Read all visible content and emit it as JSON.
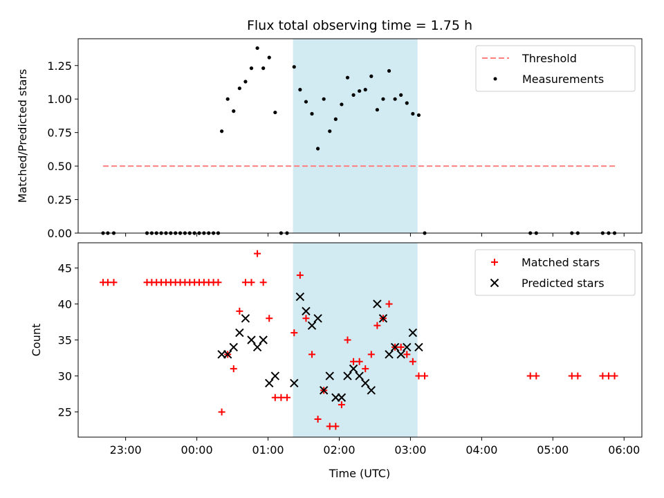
{
  "figure": {
    "title": "Flux total observing time = 1.75 h",
    "xlabel": "Time (UTC)"
  },
  "colors": {
    "shade": "#add8e6",
    "threshold": "#ff7f7f",
    "measurement": "#000000",
    "matched": "#ff0000",
    "predicted": "#000000"
  },
  "chart_data": [
    {
      "type": "scatter",
      "ylabel": "Matched/Predicted stars",
      "xlim": [
        -100,
        375
      ],
      "ylim": [
        0,
        1.45
      ],
      "x_unit": "minutes relative to 00:00 UTC",
      "xticks": [
        {
          "value": -60,
          "label": "23:00"
        },
        {
          "value": 0,
          "label": "00:00"
        },
        {
          "value": 60,
          "label": "01:00"
        },
        {
          "value": 120,
          "label": "02:00"
        },
        {
          "value": 180,
          "label": "03:00"
        },
        {
          "value": 240,
          "label": "04:00"
        },
        {
          "value": 300,
          "label": "05:00"
        },
        {
          "value": 360,
          "label": "06:00"
        }
      ],
      "yticks": [
        {
          "value": 0,
          "label": "0.00"
        },
        {
          "value": 0.25,
          "label": "0.25"
        },
        {
          "value": 0.5,
          "label": "0.50"
        },
        {
          "value": 0.75,
          "label": "0.75"
        },
        {
          "value": 1.0,
          "label": "1.00"
        },
        {
          "value": 1.25,
          "label": "1.25"
        }
      ],
      "shaded_region": [
        81,
        186
      ],
      "legend": {
        "position": "upper right",
        "entries": [
          {
            "label": "Threshold",
            "marker": "dashed-line"
          },
          {
            "label": "Measurements",
            "marker": "dot"
          }
        ]
      },
      "threshold": {
        "name": "Threshold",
        "value": 0.5,
        "x": [
          -79,
          353
        ]
      },
      "series": [
        {
          "name": "Measurements",
          "marker": "dot",
          "points": [
            [
              -79,
              0
            ],
            [
              -75,
              0
            ],
            [
              -70,
              0
            ],
            [
              -42,
              0
            ],
            [
              -38,
              0
            ],
            [
              -34,
              0
            ],
            [
              -30,
              0
            ],
            [
              -26,
              0
            ],
            [
              -22,
              0
            ],
            [
              -18,
              0
            ],
            [
              -14,
              0
            ],
            [
              -10,
              0
            ],
            [
              -6,
              0
            ],
            [
              -2,
              0
            ],
            [
              2,
              0
            ],
            [
              6,
              0
            ],
            [
              10,
              0
            ],
            [
              14,
              0
            ],
            [
              18,
              0
            ],
            [
              21,
              0.76
            ],
            [
              26,
              1.0
            ],
            [
              31,
              0.91
            ],
            [
              36,
              1.08
            ],
            [
              41,
              1.13
            ],
            [
              46,
              1.23
            ],
            [
              51,
              1.38
            ],
            [
              56,
              1.23
            ],
            [
              61,
              1.31
            ],
            [
              66,
              0.9
            ],
            [
              71,
              0
            ],
            [
              76,
              0
            ],
            [
              82,
              1.24
            ],
            [
              87,
              1.07
            ],
            [
              92,
              0.98
            ],
            [
              97,
              0.89
            ],
            [
              102,
              0.63
            ],
            [
              107,
              1.0
            ],
            [
              112,
              0.76
            ],
            [
              117,
              0.85
            ],
            [
              122,
              0.96
            ],
            [
              127,
              1.16
            ],
            [
              132,
              1.03
            ],
            [
              137,
              1.06
            ],
            [
              142,
              1.07
            ],
            [
              147,
              1.17
            ],
            [
              152,
              0.92
            ],
            [
              157,
              1.0
            ],
            [
              162,
              1.21
            ],
            [
              167,
              1.0
            ],
            [
              172,
              1.03
            ],
            [
              177,
              0.97
            ],
            [
              182,
              0.89
            ],
            [
              187,
              0.88
            ],
            [
              192,
              0
            ],
            [
              281,
              0
            ],
            [
              286,
              0
            ],
            [
              316,
              0
            ],
            [
              321,
              0
            ],
            [
              342,
              0
            ],
            [
              347,
              0
            ],
            [
              352,
              0
            ]
          ]
        }
      ]
    },
    {
      "type": "scatter",
      "ylabel": "Count",
      "xlim": [
        -100,
        375
      ],
      "ylim": [
        21.5,
        48.5
      ],
      "x_unit": "minutes relative to 00:00 UTC",
      "xticks": [
        {
          "value": -60,
          "label": "23:00"
        },
        {
          "value": 0,
          "label": "00:00"
        },
        {
          "value": 60,
          "label": "01:00"
        },
        {
          "value": 120,
          "label": "02:00"
        },
        {
          "value": 180,
          "label": "03:00"
        },
        {
          "value": 240,
          "label": "04:00"
        },
        {
          "value": 300,
          "label": "05:00"
        },
        {
          "value": 360,
          "label": "06:00"
        }
      ],
      "yticks": [
        {
          "value": 25,
          "label": "25"
        },
        {
          "value": 30,
          "label": "30"
        },
        {
          "value": 35,
          "label": "35"
        },
        {
          "value": 40,
          "label": "40"
        },
        {
          "value": 45,
          "label": "45"
        }
      ],
      "shaded_region": [
        81,
        186
      ],
      "legend": {
        "position": "upper right",
        "entries": [
          {
            "label": "Matched stars",
            "marker": "plus"
          },
          {
            "label": "Predicted stars",
            "marker": "x"
          }
        ]
      },
      "series": [
        {
          "name": "Matched stars",
          "marker": "plus",
          "points": [
            [
              -79,
              43
            ],
            [
              -75,
              43
            ],
            [
              -70,
              43
            ],
            [
              -42,
              43
            ],
            [
              -38,
              43
            ],
            [
              -34,
              43
            ],
            [
              -30,
              43
            ],
            [
              -26,
              43
            ],
            [
              -22,
              43
            ],
            [
              -18,
              43
            ],
            [
              -14,
              43
            ],
            [
              -10,
              43
            ],
            [
              -6,
              43
            ],
            [
              -2,
              43
            ],
            [
              2,
              43
            ],
            [
              6,
              43
            ],
            [
              10,
              43
            ],
            [
              14,
              43
            ],
            [
              18,
              43
            ],
            [
              21,
              25
            ],
            [
              26,
              33
            ],
            [
              31,
              31
            ],
            [
              36,
              39
            ],
            [
              41,
              43
            ],
            [
              46,
              43
            ],
            [
              51,
              47
            ],
            [
              56,
              43
            ],
            [
              61,
              38
            ],
            [
              66,
              27
            ],
            [
              71,
              27
            ],
            [
              76,
              27
            ],
            [
              82,
              36
            ],
            [
              87,
              44
            ],
            [
              92,
              38
            ],
            [
              97,
              33
            ],
            [
              102,
              24
            ],
            [
              107,
              28
            ],
            [
              112,
              23
            ],
            [
              117,
              23
            ],
            [
              122,
              26
            ],
            [
              127,
              35
            ],
            [
              132,
              32
            ],
            [
              137,
              32
            ],
            [
              142,
              31
            ],
            [
              147,
              33
            ],
            [
              152,
              37
            ],
            [
              157,
              38
            ],
            [
              162,
              40
            ],
            [
              167,
              34
            ],
            [
              172,
              34
            ],
            [
              177,
              33
            ],
            [
              182,
              32
            ],
            [
              187,
              30
            ],
            [
              192,
              30
            ],
            [
              281,
              30
            ],
            [
              286,
              30
            ],
            [
              316,
              30
            ],
            [
              321,
              30
            ],
            [
              342,
              30
            ],
            [
              347,
              30
            ],
            [
              352,
              30
            ]
          ]
        },
        {
          "name": "Predicted stars",
          "marker": "x",
          "points": [
            [
              21,
              33
            ],
            [
              26,
              33
            ],
            [
              31,
              34
            ],
            [
              36,
              36
            ],
            [
              41,
              38
            ],
            [
              46,
              35
            ],
            [
              51,
              34
            ],
            [
              56,
              35
            ],
            [
              61,
              29
            ],
            [
              66,
              30
            ],
            [
              82,
              29
            ],
            [
              87,
              41
            ],
            [
              92,
              39
            ],
            [
              97,
              37
            ],
            [
              102,
              38
            ],
            [
              107,
              28
            ],
            [
              112,
              30
            ],
            [
              117,
              27
            ],
            [
              122,
              27
            ],
            [
              127,
              30
            ],
            [
              132,
              31
            ],
            [
              137,
              30
            ],
            [
              142,
              29
            ],
            [
              147,
              28
            ],
            [
              152,
              40
            ],
            [
              157,
              38
            ],
            [
              162,
              33
            ],
            [
              167,
              34
            ],
            [
              172,
              33
            ],
            [
              177,
              34
            ],
            [
              182,
              36
            ],
            [
              187,
              34
            ]
          ]
        }
      ]
    }
  ]
}
